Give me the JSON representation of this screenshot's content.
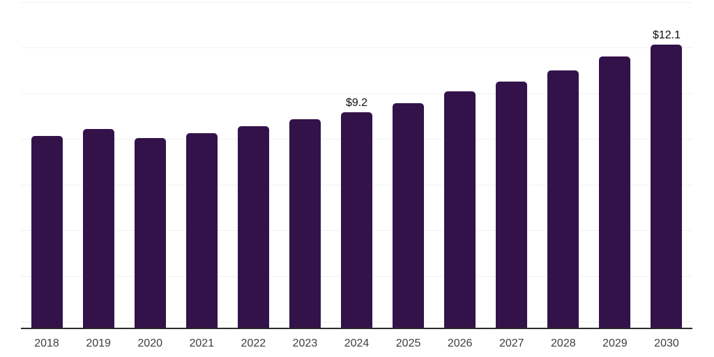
{
  "chart_data": {
    "type": "bar",
    "title": "",
    "categories": [
      "2018",
      "2019",
      "2020",
      "2021",
      "2022",
      "2023",
      "2024",
      "2025",
      "2026",
      "2027",
      "2028",
      "2029",
      "2030"
    ],
    "values": [
      8.2,
      8.5,
      8.1,
      8.3,
      8.6,
      8.9,
      9.2,
      9.6,
      10.1,
      10.5,
      11.0,
      11.6,
      12.1
    ],
    "data_labels": [
      {
        "category": "2024",
        "text": "$9.2"
      },
      {
        "category": "2030",
        "text": "$12.1"
      }
    ],
    "xlabel": "",
    "ylabel": "",
    "ylim": [
      0,
      14
    ],
    "grid": true,
    "legend": false,
    "colors": {
      "bar": "#331249",
      "value_label": "#0d0d0d",
      "axis_tick_label": "#3d3d3d",
      "gridline": "#f1f1f1",
      "axis_line": "#2b2b2b",
      "background": "#ffffff"
    }
  }
}
